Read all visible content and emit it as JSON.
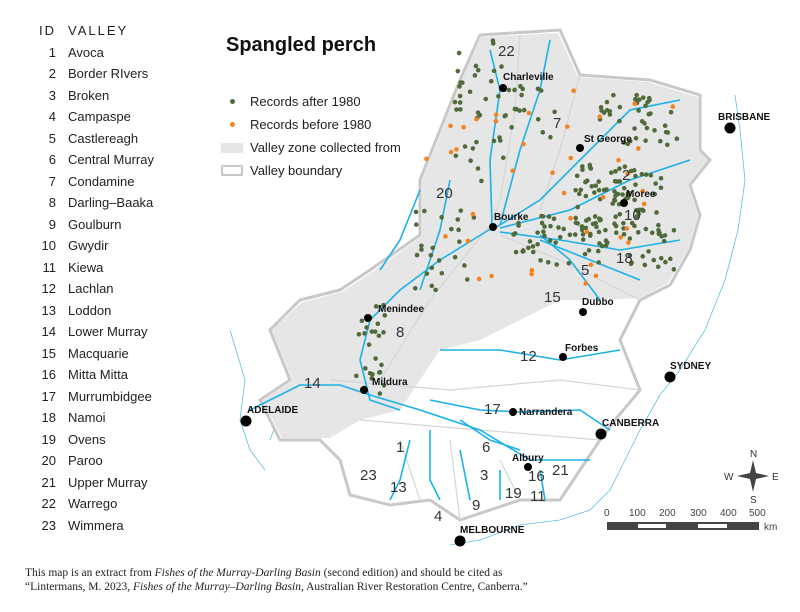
{
  "title": "Spangled perch",
  "valley_list": {
    "id_header": "ID",
    "valley_header": "VALLEY",
    "items": [
      {
        "id": "1",
        "name": "Avoca"
      },
      {
        "id": "2",
        "name": "Border RIvers"
      },
      {
        "id": "3",
        "name": "Broken"
      },
      {
        "id": "4",
        "name": "Campaspe"
      },
      {
        "id": "5",
        "name": "Castlereagh"
      },
      {
        "id": "6",
        "name": "Central Murray"
      },
      {
        "id": "7",
        "name": "Condamine"
      },
      {
        "id": "8",
        "name": "Darling–Baaka"
      },
      {
        "id": "9",
        "name": "Goulburn"
      },
      {
        "id": "10",
        "name": "Gwydir"
      },
      {
        "id": "11",
        "name": "Kiewa"
      },
      {
        "id": "12",
        "name": "Lachlan"
      },
      {
        "id": "13",
        "name": "Loddon"
      },
      {
        "id": "14",
        "name": "Lower Murray"
      },
      {
        "id": "15",
        "name": "Macquarie"
      },
      {
        "id": "16",
        "name": "Mitta Mitta"
      },
      {
        "id": "17",
        "name": "Murrumbidgee"
      },
      {
        "id": "18",
        "name": "Namoi"
      },
      {
        "id": "19",
        "name": "Ovens"
      },
      {
        "id": "20",
        "name": "Paroo"
      },
      {
        "id": "21",
        "name": "Upper Murray"
      },
      {
        "id": "22",
        "name": "Warrego"
      },
      {
        "id": "23",
        "name": "Wimmera"
      }
    ]
  },
  "legend": {
    "after": {
      "label": "Records after 1980",
      "color": "#4f6b3a"
    },
    "before": {
      "label": "Records before 1980",
      "color": "#f58220"
    },
    "zone": {
      "label": "Valley zone collected from",
      "color": "#e6e6e6"
    },
    "boundary": {
      "label": "Valley boundary",
      "color": "#c8c8c8"
    }
  },
  "river_color": "#1ab2e8",
  "cities": {
    "charleville": "Charleville",
    "st_george": "St George",
    "brisbane": "BRISBANE",
    "moree": "Moree",
    "bourke": "Bourke",
    "dubbo": "Dubbo",
    "menindee": "Menindee",
    "forbes": "Forbes",
    "sydney": "SYDNEY",
    "mildura": "Mildura",
    "adelaide": "ADELAIDE",
    "narrandera": "Narrandera",
    "canberra": "CANBERRA",
    "albury": "Albury",
    "melbourne": "MELBOURNE"
  },
  "compass": {
    "n": "N",
    "s": "S",
    "e": "E",
    "w": "W"
  },
  "scale": {
    "ticks": [
      "0",
      "100",
      "200",
      "300",
      "400",
      "500"
    ],
    "unit": "km"
  },
  "caption": {
    "line1_a": "This map is an extract from ",
    "line1_b": "Fishes of the Murray-Darling Basin",
    "line1_c": " (second edition) and should be cited as",
    "line2_a": "“Lintermans, M. 2023, ",
    "line2_b": "Fishes of the Murray–Darling Basin",
    "line2_c": ", Australian River Restoration Centre, Canberra.”"
  }
}
